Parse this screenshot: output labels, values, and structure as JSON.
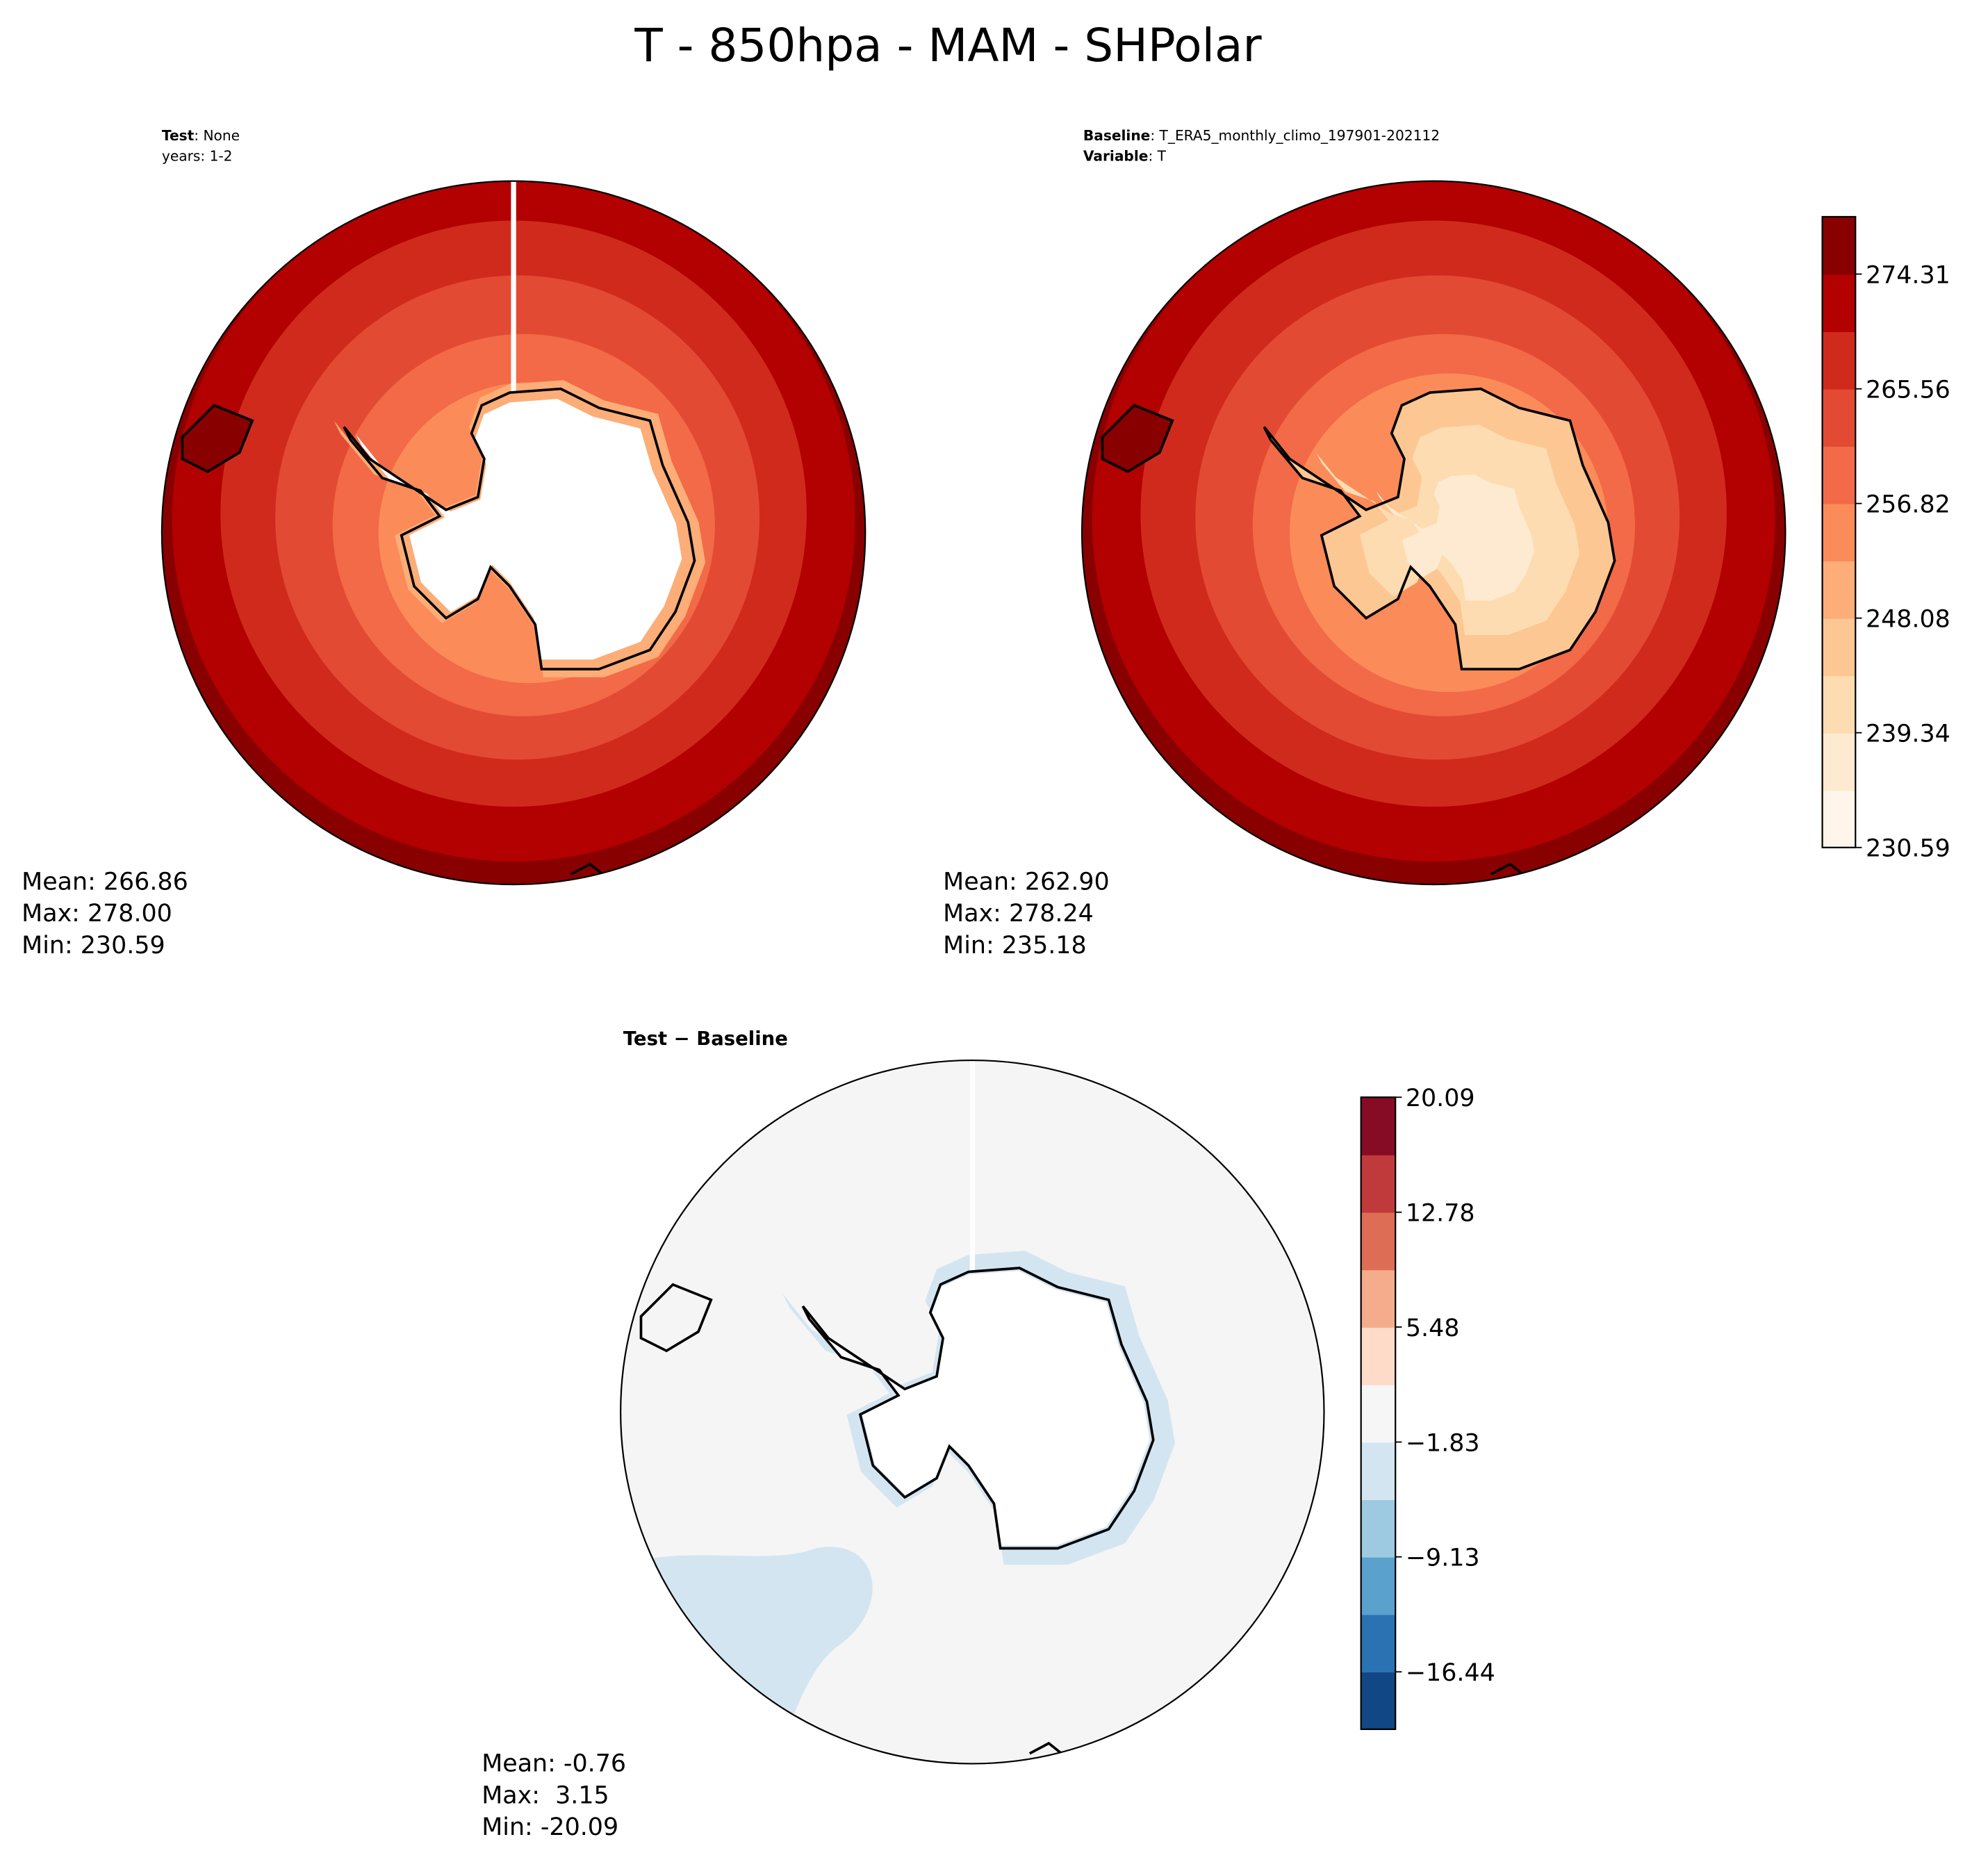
{
  "title": "T - 850hpa - MAM - SHPolar",
  "panels": [
    {
      "lines": [
        {
          "bold": "Test",
          "text": ": None"
        },
        {
          "bold": "",
          "text": "years: 1-2"
        }
      ],
      "stats": [
        "Mean: 266.86",
        "Max: 278.00",
        "Min: 230.59"
      ]
    },
    {
      "lines": [
        {
          "bold": "Baseline",
          "text": ": T_ERA5_monthly_climo_197901-202112"
        },
        {
          "bold": "Variable",
          "text": ": T"
        }
      ],
      "stats": [
        "Mean: 262.90",
        "Max: 278.24",
        "Min: 235.18"
      ]
    },
    {
      "lines": [
        {
          "bold": "Test − Baseline",
          "text": ""
        }
      ],
      "stats": [
        "Mean: -0.76",
        "Max:  3.15",
        "Min: -20.09"
      ]
    }
  ],
  "colorbars": [
    {
      "lim": [
        230.59,
        278.68
      ],
      "ticks": [
        230.59,
        239.34,
        248.08,
        256.82,
        265.56,
        274.31
      ],
      "colors": [
        "#fff5eb",
        "#feead0",
        "#fddcb1",
        "#fdc793",
        "#fdad77",
        "#fc8b5a",
        "#f26a47",
        "#e34a33",
        "#d02a1d",
        "#b30000",
        "#880000"
      ]
    },
    {
      "lim": [
        -20.09,
        20.09
      ],
      "ticks": [
        {
          "value": -16.44,
          "label": "−16.44"
        },
        {
          "value": -9.13,
          "label": "−9.13"
        },
        {
          "value": -1.83,
          "label": "−1.83"
        },
        5.48,
        12.78,
        20.09
      ],
      "colors": [
        "#114784",
        "#2b72b3",
        "#5aa1cd",
        "#9ecae1",
        "#d3e5f1",
        "#f6f6f6",
        "#fddbc8",
        "#f5ac8c",
        "#de6d56",
        "#c0393b",
        "#860c25"
      ]
    }
  ]
}
